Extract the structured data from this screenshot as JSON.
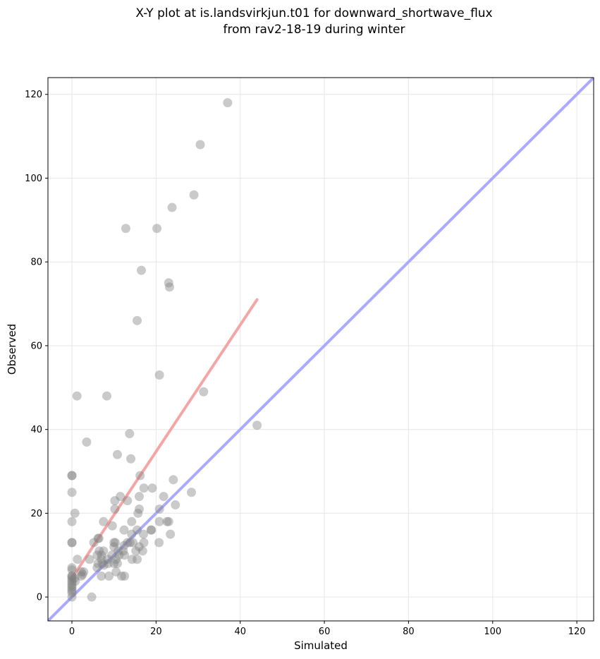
{
  "chart_data": {
    "type": "scatter",
    "title_line1": "X-Y plot at is.landsvirkjun.t01 for downward_shortwave_flux",
    "title_line2": "from rav2-18-19 during winter",
    "xlabel": "Simulated",
    "ylabel": "Observed",
    "xlim": [
      -5.7,
      124
    ],
    "ylim": [
      -5.7,
      124
    ],
    "xticks": [
      0,
      20,
      40,
      60,
      80,
      100,
      120
    ],
    "yticks": [
      0,
      20,
      40,
      60,
      80,
      100,
      120
    ],
    "grid": true,
    "colors": {
      "points": "#808080",
      "identity_line": "#aaaaff",
      "fit_line": "#f4a6a6",
      "frame": "#000000"
    },
    "identity_line": {
      "from": [
        -5.7,
        -5.7
      ],
      "to": [
        124,
        124
      ]
    },
    "fit_line": {
      "from": [
        0,
        4.5
      ],
      "to": [
        44,
        71
      ]
    },
    "points": [
      [
        37,
        118
      ],
      [
        30.5,
        108
      ],
      [
        29,
        96
      ],
      [
        23.8,
        93
      ],
      [
        12.8,
        88
      ],
      [
        20.2,
        88
      ],
      [
        16.5,
        78
      ],
      [
        23,
        75
      ],
      [
        23.2,
        74
      ],
      [
        15.5,
        66
      ],
      [
        20.8,
        53
      ],
      [
        31.3,
        49
      ],
      [
        1.2,
        48
      ],
      [
        8.3,
        48
      ],
      [
        44,
        41
      ],
      [
        13.7,
        39
      ],
      [
        3.5,
        37
      ],
      [
        10.8,
        34
      ],
      [
        14,
        33
      ],
      [
        0,
        29
      ],
      [
        0,
        29
      ],
      [
        16.2,
        29
      ],
      [
        24.1,
        28
      ],
      [
        17.1,
        26
      ],
      [
        19.1,
        26
      ],
      [
        0,
        25
      ],
      [
        28.4,
        25
      ],
      [
        11.5,
        24
      ],
      [
        16,
        24
      ],
      [
        21.8,
        24
      ],
      [
        10.2,
        23
      ],
      [
        13.2,
        23
      ],
      [
        24.6,
        22
      ],
      [
        10.2,
        21
      ],
      [
        16,
        21
      ],
      [
        20.8,
        21
      ],
      [
        15.7,
        20
      ],
      [
        0.7,
        20
      ],
      [
        0,
        18
      ],
      [
        7.5,
        18
      ],
      [
        14.2,
        18
      ],
      [
        20.8,
        18
      ],
      [
        22.6,
        18
      ],
      [
        23,
        18
      ],
      [
        9.6,
        17
      ],
      [
        12.4,
        16
      ],
      [
        15.5,
        16
      ],
      [
        18.8,
        16
      ],
      [
        18.9,
        16
      ],
      [
        14.2,
        15
      ],
      [
        17,
        15
      ],
      [
        23.4,
        15
      ],
      [
        6.2,
        14
      ],
      [
        6.4,
        14
      ],
      [
        10,
        13
      ],
      [
        10.3,
        13
      ],
      [
        13.2,
        13
      ],
      [
        13.8,
        13
      ],
      [
        14.5,
        13
      ],
      [
        17.1,
        13
      ],
      [
        20.7,
        13
      ],
      [
        0,
        13
      ],
      [
        0,
        13
      ],
      [
        5.2,
        13
      ],
      [
        6.5,
        11
      ],
      [
        7.5,
        11
      ],
      [
        10,
        12
      ],
      [
        11,
        11
      ],
      [
        12.2,
        11
      ],
      [
        15.2,
        11
      ],
      [
        16,
        12
      ],
      [
        16.8,
        11
      ],
      [
        6,
        10
      ],
      [
        7,
        10
      ],
      [
        9.5,
        10
      ],
      [
        11.2,
        10
      ],
      [
        12.5,
        10
      ],
      [
        1.3,
        9
      ],
      [
        4.2,
        9
      ],
      [
        7,
        9
      ],
      [
        8.5,
        9
      ],
      [
        10.5,
        9
      ],
      [
        14.3,
        9
      ],
      [
        15.5,
        9
      ],
      [
        6.2,
        8
      ],
      [
        7.2,
        8
      ],
      [
        8.6,
        8
      ],
      [
        10,
        8
      ],
      [
        10.8,
        8
      ],
      [
        6,
        7
      ],
      [
        0,
        7
      ],
      [
        0,
        6.5
      ],
      [
        2.2,
        6
      ],
      [
        2.8,
        6
      ],
      [
        11.8,
        5
      ],
      [
        12.5,
        5
      ],
      [
        7,
        5
      ],
      [
        8.8,
        5
      ],
      [
        2.2,
        5
      ],
      [
        0,
        5
      ],
      [
        0,
        5
      ],
      [
        0,
        4.5
      ],
      [
        0,
        4
      ],
      [
        0,
        3.5
      ],
      [
        0,
        3
      ],
      [
        0,
        2.5
      ],
      [
        0,
        2
      ],
      [
        0.6,
        4.5
      ],
      [
        0.8,
        3.8
      ],
      [
        0,
        1.5
      ],
      [
        0,
        1
      ],
      [
        0,
        0
      ],
      [
        4.7,
        0
      ],
      [
        10.5,
        6
      ],
      [
        7.6,
        7.6
      ],
      [
        12.4,
        12.3
      ],
      [
        2.5,
        5.4
      ]
    ]
  }
}
